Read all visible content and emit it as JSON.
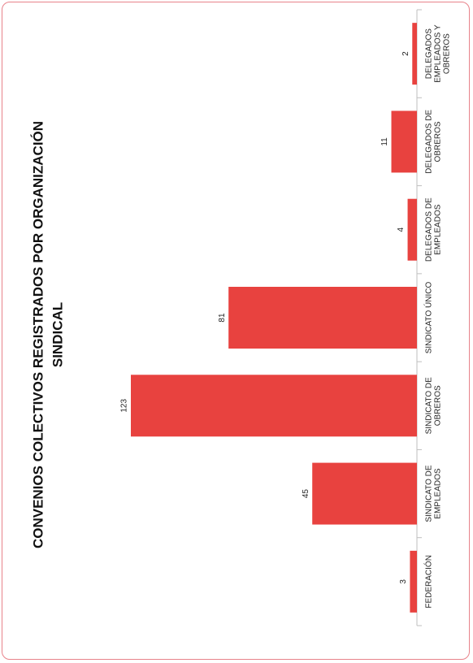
{
  "chart_data": {
    "type": "bar",
    "orientation": "horizontal",
    "title_lines": [
      "CONVENIOS COLECTIVOS REGISTRADOS POR ORGANIZACIÓN",
      "SINDICAL"
    ],
    "categories": [
      [
        "FEDERACIÓN"
      ],
      [
        "SINDICATO DE",
        "EMPLEADOS"
      ],
      [
        "SINDICATO DE",
        "OBREROS"
      ],
      [
        "SINDICATO ÚNICO"
      ],
      [
        "DELEGADOS DE",
        "EMPLEADOS"
      ],
      [
        "DELEGADOS DE",
        "OBREROS"
      ],
      [
        "DELEGADOS",
        "EMPLEADOS Y",
        "OBREROS"
      ]
    ],
    "values": [
      3,
      45,
      123,
      81,
      4,
      11,
      2
    ],
    "data_labels": [
      "3",
      "45",
      "123",
      "81",
      "4",
      "11",
      "2"
    ],
    "value_axis_range": [
      0,
      123
    ],
    "grid": false,
    "legend": "none",
    "bar_color": "#e8423f",
    "axis_color": "#bfbfbf",
    "border_color": "#e8828a"
  }
}
